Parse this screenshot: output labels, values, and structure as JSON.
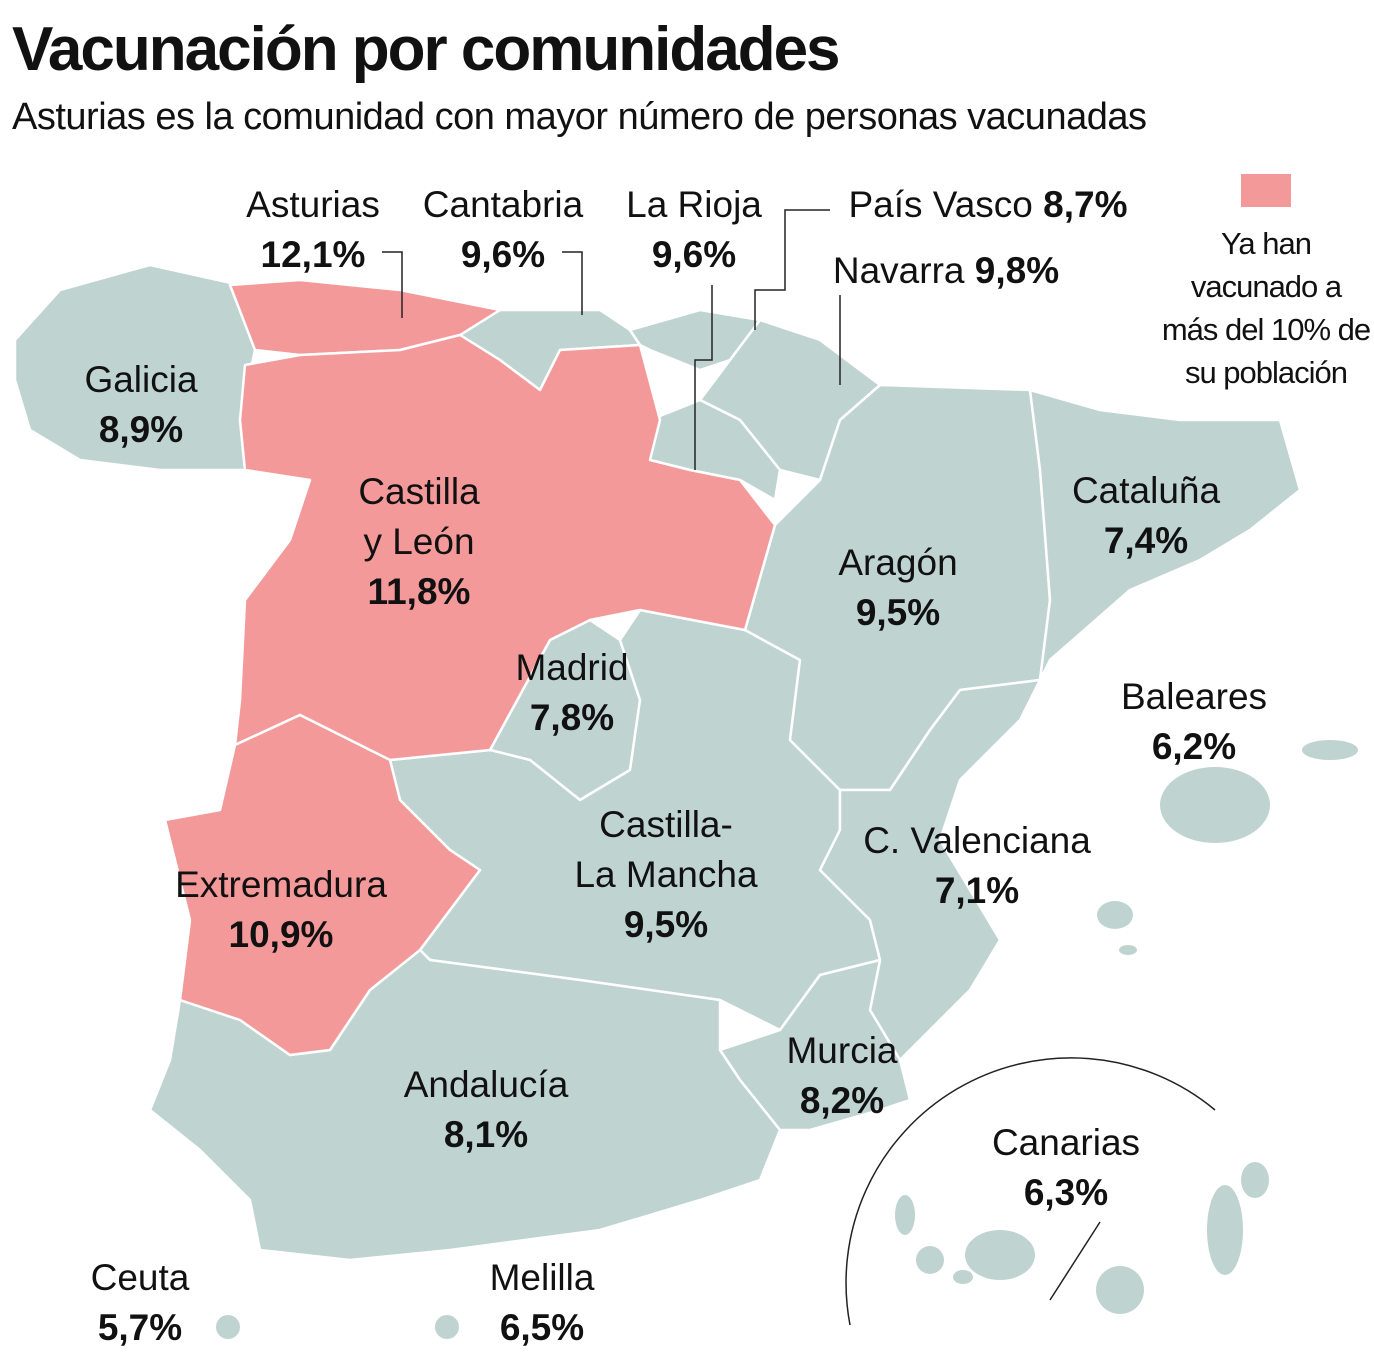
{
  "header": {
    "title": "Vacunación por comunidades",
    "subtitle": "Asturias es la comunidad con mayor número de personas vacunadas"
  },
  "legend": {
    "label": [
      "Ya han",
      "vacunado a",
      "más del 10% de",
      "su población"
    ],
    "color": "#f4999a"
  },
  "colors": {
    "above": "#f4999a",
    "below": "#bfd3d1"
  },
  "regions": {
    "asturias": {
      "name": "Asturias",
      "value": "12,1%"
    },
    "cantabria": {
      "name": "Cantabria",
      "value": "9,6%"
    },
    "larioja": {
      "name": "La Rioja",
      "value": "9,6%"
    },
    "paisvasco": {
      "name": "País Vasco",
      "value": "8,7%"
    },
    "navarra": {
      "name": "Navarra",
      "value": "9,8%"
    },
    "galicia": {
      "name": "Galicia",
      "value": "8,9%"
    },
    "cyl": {
      "name": [
        "Castilla",
        "y León"
      ],
      "value": "11,8%"
    },
    "cataluna": {
      "name": "Cataluña",
      "value": "7,4%"
    },
    "aragon": {
      "name": "Aragón",
      "value": "9,5%"
    },
    "madrid": {
      "name": "Madrid",
      "value": "7,8%"
    },
    "baleares": {
      "name": "Baleares",
      "value": "6,2%"
    },
    "clm": {
      "name": [
        "Castilla-",
        "La Mancha"
      ],
      "value": "9,5%"
    },
    "valencia": {
      "name": "C. Valenciana",
      "value": "7,1%"
    },
    "extremadura": {
      "name": "Extremadura",
      "value": "10,9%"
    },
    "murcia": {
      "name": "Murcia",
      "value": "8,2%"
    },
    "andalucia": {
      "name": "Andalucía",
      "value": "8,1%"
    },
    "canarias": {
      "name": "Canarias",
      "value": "6,3%"
    },
    "ceuta": {
      "name": "Ceuta",
      "value": "5,7%"
    },
    "melilla": {
      "name": "Melilla",
      "value": "6,5%"
    }
  }
}
